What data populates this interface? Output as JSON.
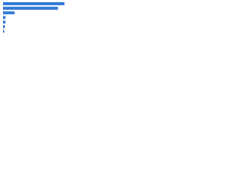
{
  "chart_data": {
    "type": "bar",
    "orientation": "horizontal",
    "categories": [
      null,
      null,
      null,
      null,
      null,
      null,
      null
    ],
    "values": [
      94,
      84,
      18,
      4,
      4,
      3,
      2
    ],
    "color": "#2f78d7",
    "xlim": [
      0,
      100
    ]
  }
}
